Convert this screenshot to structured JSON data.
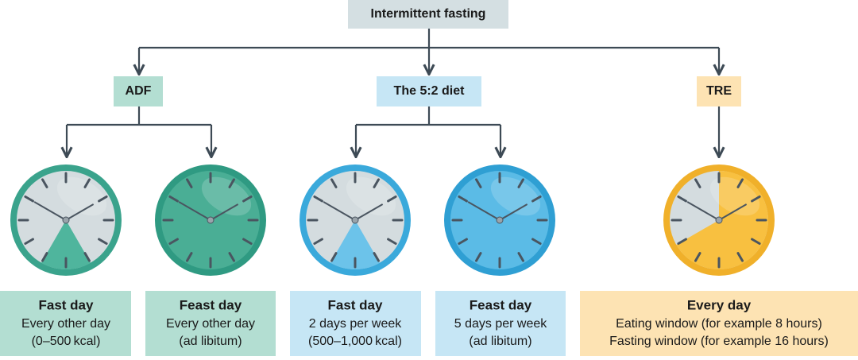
{
  "title": "Intermittent fasting",
  "branches": [
    {
      "label": "ADF",
      "panels": [
        {
          "title": "Fast day",
          "lines": [
            "Every other day",
            "(0–500 kcal)"
          ]
        },
        {
          "title": "Feast day",
          "lines": [
            "Every other day",
            "(ad libitum)"
          ]
        }
      ]
    },
    {
      "label": "The 5:2 diet",
      "panels": [
        {
          "title": "Fast day",
          "lines": [
            "2 days per week",
            "(500–1,000 kcal)"
          ]
        },
        {
          "title": "Feast day",
          "lines": [
            "5 days per week",
            "(ad libitum)"
          ]
        }
      ]
    },
    {
      "label": "TRE",
      "panels": [
        {
          "title": "Every day",
          "lines": [
            "Eating window (for example 8 hours)",
            "Fasting window (for example 16 hours)"
          ]
        }
      ]
    }
  ]
}
